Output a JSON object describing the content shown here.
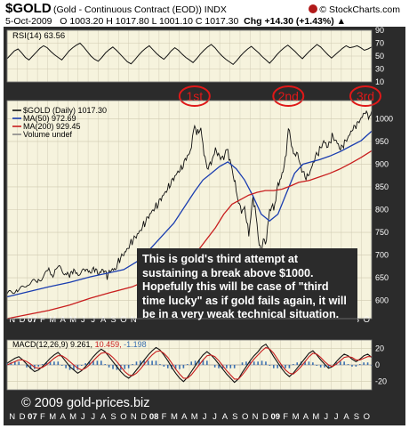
{
  "header": {
    "symbol": "$GOLD",
    "name": "(Gold - Continuous Contract (EOD))  INDX",
    "site": "© StockCharts.com",
    "quote": {
      "date": "5-Oct-2009",
      "ohlc": "O 1003.20  H 1017.80  L 1001.10  C 1017.30",
      "chg": "Chg +14.30 (+1.43%)",
      "arrow": "▲"
    }
  },
  "colors": {
    "background": "#2b2b2b",
    "panel": "#f6f3dd",
    "price": "#111111",
    "ma50": "#1a3db0",
    "ma200": "#c81e1e",
    "macd_hist": "#3a6fb0",
    "ellipse": "#e01818"
  },
  "chart_data": [
    {
      "type": "line",
      "panel": "rsi",
      "legend": [
        "RSI(14) 63.56"
      ],
      "ylim": [
        10,
        90
      ],
      "yticks": [
        10,
        30,
        50,
        70,
        90
      ],
      "series": [
        {
          "name": "RSI(14)",
          "values": [
            46,
            52,
            58,
            61,
            55,
            48,
            44,
            50,
            56,
            62,
            66,
            63,
            57,
            52,
            48,
            44,
            51,
            58,
            63,
            67,
            70,
            64,
            57,
            50,
            45,
            42,
            48,
            55,
            60,
            64,
            59,
            53,
            47,
            41,
            38,
            44,
            51,
            57,
            62,
            66,
            60,
            54,
            49,
            45,
            51,
            58,
            63,
            59,
            53,
            48,
            44,
            40,
            46,
            53,
            59,
            64,
            68,
            63,
            56,
            50,
            45,
            41,
            37,
            43,
            50,
            56,
            61,
            65,
            60,
            55,
            49,
            44,
            39,
            45,
            52,
            58,
            63,
            67,
            62,
            57,
            51,
            46,
            52,
            58,
            63,
            68,
            64,
            58,
            52,
            47,
            52,
            57,
            62,
            66,
            63,
            64,
            66,
            63,
            59,
            61,
            64
          ]
        }
      ]
    },
    {
      "type": "line",
      "panel": "price",
      "legend": [
        "$GOLD (Daily) 1017.30",
        "MA(50) 972.69",
        "MA(200) 929.45",
        "Volume undef"
      ],
      "ylim": [
        560,
        1040
      ],
      "yticks": [
        600,
        650,
        700,
        750,
        800,
        850,
        900,
        950,
        1000
      ],
      "x_labels": [
        "N",
        "D",
        "07",
        "F",
        "M",
        "A",
        "M",
        "J",
        "J",
        "A",
        "S",
        "O",
        "N",
        "D",
        "08",
        "F",
        "M",
        "A",
        "M",
        "J",
        "J",
        "A",
        "S",
        "O",
        "N",
        "D",
        "09",
        "F",
        "M",
        "A",
        "M",
        "J",
        "J",
        "A",
        "S",
        "O"
      ],
      "bold_labels": [
        "07",
        "08",
        "09"
      ],
      "price_points": [
        [
          0,
          610
        ],
        [
          5,
          628
        ],
        [
          10,
          632
        ],
        [
          15,
          648
        ],
        [
          20,
          664
        ],
        [
          22,
          650
        ],
        [
          24,
          672
        ],
        [
          28,
          658
        ],
        [
          30,
          652
        ],
        [
          32,
          664
        ],
        [
          34,
          655
        ],
        [
          38,
          665
        ],
        [
          40,
          660
        ],
        [
          42,
          668
        ],
        [
          44,
          655
        ],
        [
          46,
          668
        ],
        [
          48,
          652
        ],
        [
          50,
          665
        ],
        [
          52,
          668
        ],
        [
          54,
          690
        ],
        [
          56,
          700
        ],
        [
          58,
          715
        ],
        [
          60,
          730
        ],
        [
          62,
          740
        ],
        [
          64,
          755
        ],
        [
          66,
          770
        ],
        [
          68,
          785
        ],
        [
          70,
          800
        ],
        [
          72,
          810
        ],
        [
          74,
          825
        ],
        [
          76,
          840
        ],
        [
          78,
          855
        ],
        [
          80,
          870
        ],
        [
          82,
          885
        ],
        [
          84,
          895
        ],
        [
          86,
          915
        ],
        [
          88,
          930
        ],
        [
          89,
          955
        ],
        [
          90,
          990
        ],
        [
          91,
          965
        ],
        [
          92,
          975
        ],
        [
          93,
          975
        ],
        [
          94,
          945
        ],
        [
          95,
          910
        ],
        [
          96,
          895
        ],
        [
          98,
          905
        ],
        [
          100,
          935
        ],
        [
          102,
          920
        ],
        [
          104,
          915
        ],
        [
          105,
          930
        ],
        [
          106,
          930
        ],
        [
          107,
          905
        ],
        [
          108,
          890
        ],
        [
          109,
          865
        ],
        [
          110,
          845
        ],
        [
          111,
          815
        ],
        [
          112,
          805
        ],
        [
          113,
          795
        ],
        [
          114,
          805
        ],
        [
          115,
          775
        ],
        [
          116,
          745
        ],
        [
          117,
          785
        ],
        [
          118,
          825
        ],
        [
          119,
          805
        ],
        [
          120,
          765
        ],
        [
          121,
          725
        ],
        [
          122,
          700
        ],
        [
          123,
          740
        ],
        [
          124,
          720
        ],
        [
          125,
          760
        ],
        [
          126,
          795
        ],
        [
          127,
          810
        ],
        [
          128,
          800
        ],
        [
          129,
          825
        ],
        [
          130,
          855
        ],
        [
          131,
          865
        ],
        [
          132,
          875
        ],
        [
          133,
          900
        ],
        [
          134,
          920
        ],
        [
          135,
          985
        ],
        [
          136,
          955
        ],
        [
          137,
          935
        ],
        [
          138,
          915
        ],
        [
          139,
          930
        ],
        [
          140,
          910
        ],
        [
          142,
          880
        ],
        [
          144,
          870
        ],
        [
          146,
          890
        ],
        [
          148,
          915
        ],
        [
          150,
          930
        ],
        [
          152,
          950
        ],
        [
          154,
          935
        ],
        [
          156,
          960
        ],
        [
          158,
          950
        ],
        [
          160,
          930
        ],
        [
          162,
          945
        ],
        [
          164,
          960
        ],
        [
          166,
          975
        ],
        [
          168,
          985
        ],
        [
          170,
          1000
        ],
        [
          172,
          1012
        ],
        [
          174,
          1000
        ],
        [
          175,
          1017.3
        ]
      ],
      "ma50_points": [
        [
          0,
          608
        ],
        [
          20,
          630
        ],
        [
          30,
          640
        ],
        [
          40,
          652
        ],
        [
          48,
          660
        ],
        [
          56,
          668
        ],
        [
          64,
          690
        ],
        [
          72,
          730
        ],
        [
          80,
          770
        ],
        [
          86,
          812
        ],
        [
          90,
          840
        ],
        [
          94,
          865
        ],
        [
          98,
          880
        ],
        [
          102,
          895
        ],
        [
          106,
          905
        ],
        [
          110,
          890
        ],
        [
          114,
          865
        ],
        [
          118,
          830
        ],
        [
          122,
          790
        ],
        [
          126,
          775
        ],
        [
          130,
          790
        ],
        [
          134,
          835
        ],
        [
          138,
          880
        ],
        [
          142,
          900
        ],
        [
          146,
          905
        ],
        [
          150,
          910
        ],
        [
          155,
          918
        ],
        [
          160,
          928
        ],
        [
          165,
          940
        ],
        [
          170,
          952
        ],
        [
          175,
          972.69
        ]
      ],
      "ma200_points": [
        [
          0,
          560
        ],
        [
          20,
          578
        ],
        [
          30,
          590
        ],
        [
          40,
          605
        ],
        [
          50,
          618
        ],
        [
          60,
          630
        ],
        [
          70,
          650
        ],
        [
          80,
          675
        ],
        [
          90,
          700
        ],
        [
          100,
          760
        ],
        [
          104,
          790
        ],
        [
          108,
          812
        ],
        [
          112,
          822
        ],
        [
          116,
          832
        ],
        [
          120,
          838
        ],
        [
          124,
          842
        ],
        [
          128,
          842
        ],
        [
          132,
          845
        ],
        [
          136,
          852
        ],
        [
          140,
          860
        ],
        [
          145,
          864
        ],
        [
          150,
          872
        ],
        [
          155,
          880
        ],
        [
          160,
          890
        ],
        [
          165,
          902
        ],
        [
          170,
          915
        ],
        [
          175,
          929.45
        ]
      ],
      "peaks": [
        {
          "label": "1st",
          "t": 90,
          "price": 990
        },
        {
          "label": "2nd",
          "t": 135,
          "price": 985
        },
        {
          "label": "3rd",
          "t": 172,
          "price": 1012
        }
      ]
    },
    {
      "type": "line",
      "panel": "macd",
      "legend": [
        "MACD(12,26,9)",
        "9.261",
        "10.459",
        "-1.198"
      ],
      "ylim": [
        -30,
        30
      ],
      "yticks": [
        -20,
        0,
        20
      ],
      "macd_values": [
        2,
        5,
        8,
        10,
        6,
        1,
        -4,
        -8,
        -6,
        -2,
        3,
        8,
        12,
        15,
        10,
        4,
        -2,
        -6,
        -10,
        -7,
        -2,
        4,
        10,
        15,
        19,
        16,
        10,
        4,
        -2,
        -8,
        -13,
        -16,
        -12,
        -6,
        0,
        6,
        12,
        17,
        21,
        18,
        12,
        5,
        -3,
        -10,
        -16,
        -20,
        -15,
        -8,
        -1,
        6,
        12,
        16,
        12,
        7,
        1,
        -5,
        -11,
        -16,
        -21,
        -17,
        -9,
        -2,
        5,
        11,
        16,
        22,
        25,
        18,
        10,
        3,
        -4,
        -10,
        -14,
        -10,
        -4,
        2,
        8,
        14,
        17,
        12,
        6,
        1,
        -4,
        -2,
        4,
        9,
        13,
        11,
        7,
        4,
        7,
        11,
        13,
        9
      ],
      "signal_values": [
        0,
        2,
        4,
        6,
        6,
        4,
        1,
        -3,
        -4,
        -3,
        0,
        4,
        8,
        11,
        11,
        8,
        4,
        0,
        -4,
        -6,
        -4,
        0,
        5,
        10,
        14,
        15,
        13,
        9,
        4,
        -2,
        -8,
        -12,
        -13,
        -10,
        -5,
        1,
        7,
        12,
        16,
        17,
        14,
        9,
        2,
        -5,
        -11,
        -16,
        -16,
        -12,
        -6,
        0,
        6,
        11,
        12,
        10,
        5,
        -1,
        -7,
        -12,
        -17,
        -17,
        -12,
        -6,
        1,
        7,
        12,
        17,
        21,
        19,
        14,
        7,
        0,
        -6,
        -10,
        -11,
        -7,
        -2,
        4,
        10,
        14,
        13,
        9,
        4,
        0,
        -2,
        1,
        5,
        9,
        10,
        9,
        6,
        6,
        8,
        10,
        10
      ]
    }
  ],
  "annotation": {
    "lines": [
      "This is gold's third attempt at",
      "sustaining a break above $1000.",
      "Hopefully this will be case of \"third",
      "time lucky\" as if gold fails again, it will",
      "be in a very weak technical situation."
    ]
  },
  "copyright": "© 2009 gold-prices.biz"
}
